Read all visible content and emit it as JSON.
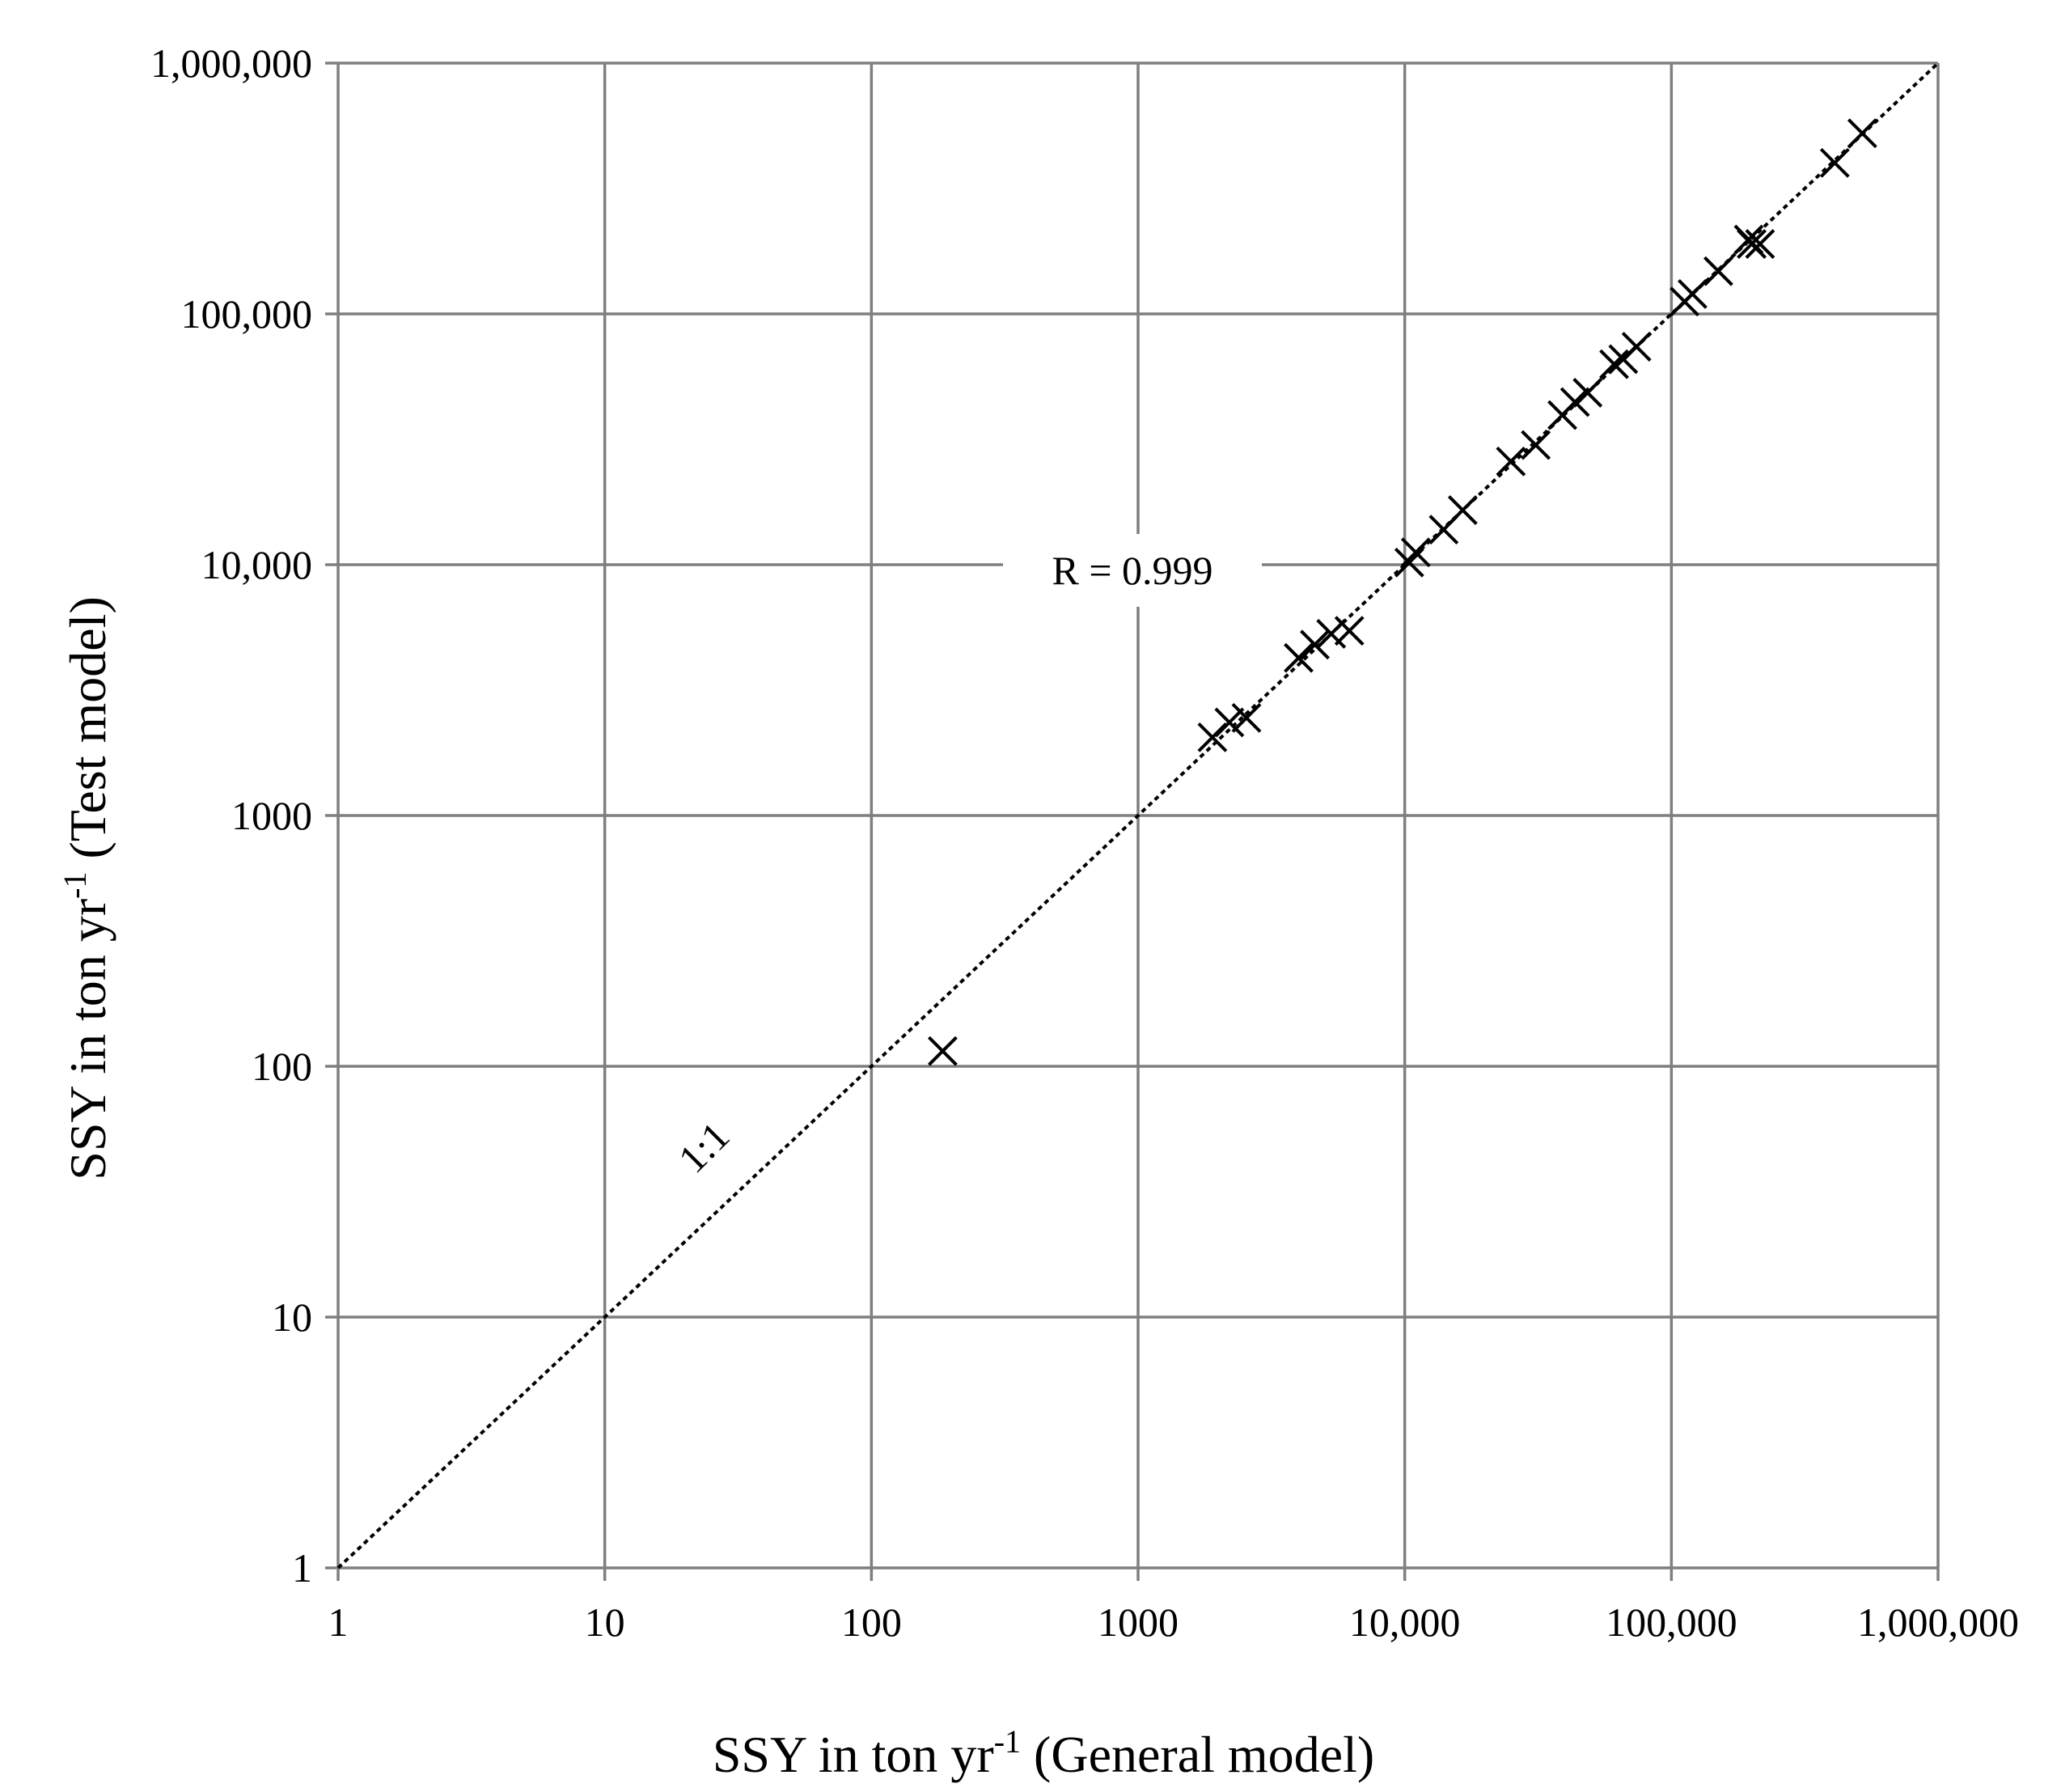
{
  "chart_data": {
    "type": "scatter",
    "x_scale": "log",
    "y_scale": "log",
    "xlim": [
      1,
      1000000
    ],
    "ylim": [
      1,
      1000000
    ],
    "grid": true,
    "xlabel": {
      "main": "SSY in ton yr",
      "sup": "-1",
      "rest": " (General model)"
    },
    "ylabel": {
      "main": "SSY in ton yr",
      "sup": "-1",
      "rest": " (Test model)"
    },
    "x_ticks": [
      {
        "value": 1,
        "label": "1"
      },
      {
        "value": 10,
        "label": "10"
      },
      {
        "value": 100,
        "label": "100"
      },
      {
        "value": 1000,
        "label": "1000"
      },
      {
        "value": 10000,
        "label": "10,000"
      },
      {
        "value": 100000,
        "label": "100,000"
      },
      {
        "value": 1000000,
        "label": "1,000,000"
      }
    ],
    "y_ticks": [
      {
        "value": 1,
        "label": "1"
      },
      {
        "value": 10,
        "label": "10"
      },
      {
        "value": 100,
        "label": "100"
      },
      {
        "value": 1000,
        "label": "1000"
      },
      {
        "value": 10000,
        "label": "10,000"
      },
      {
        "value": 100000,
        "label": "100,000"
      },
      {
        "value": 1000000,
        "label": "1,000,000"
      }
    ],
    "annotations": {
      "correlation": "R = 0.999",
      "reference_line": "1:1"
    },
    "reference_line": {
      "from": [
        1,
        1
      ],
      "to": [
        1000000,
        1000000
      ],
      "style": "dashed"
    },
    "series": [
      {
        "marker": "x",
        "points": [
          [
            185,
            115
          ],
          [
            1900,
            2050
          ],
          [
            2200,
            2350
          ],
          [
            2550,
            2450
          ],
          [
            4000,
            4250
          ],
          [
            4600,
            4800
          ],
          [
            5300,
            5300
          ],
          [
            6200,
            5450
          ],
          [
            10400,
            10200
          ],
          [
            11000,
            11200
          ],
          [
            14000,
            13800
          ],
          [
            16500,
            16500
          ],
          [
            25000,
            25800
          ],
          [
            31000,
            30000
          ],
          [
            39000,
            39500
          ],
          [
            43500,
            44500
          ],
          [
            48500,
            48500
          ],
          [
            61000,
            63000
          ],
          [
            66000,
            66000
          ],
          [
            74000,
            74000
          ],
          [
            112000,
            112000
          ],
          [
            120000,
            120000
          ],
          [
            150000,
            148000
          ],
          [
            195000,
            198000
          ],
          [
            200000,
            190000
          ],
          [
            215000,
            190000
          ],
          [
            410000,
            400000
          ],
          [
            520000,
            525000
          ]
        ]
      }
    ]
  }
}
